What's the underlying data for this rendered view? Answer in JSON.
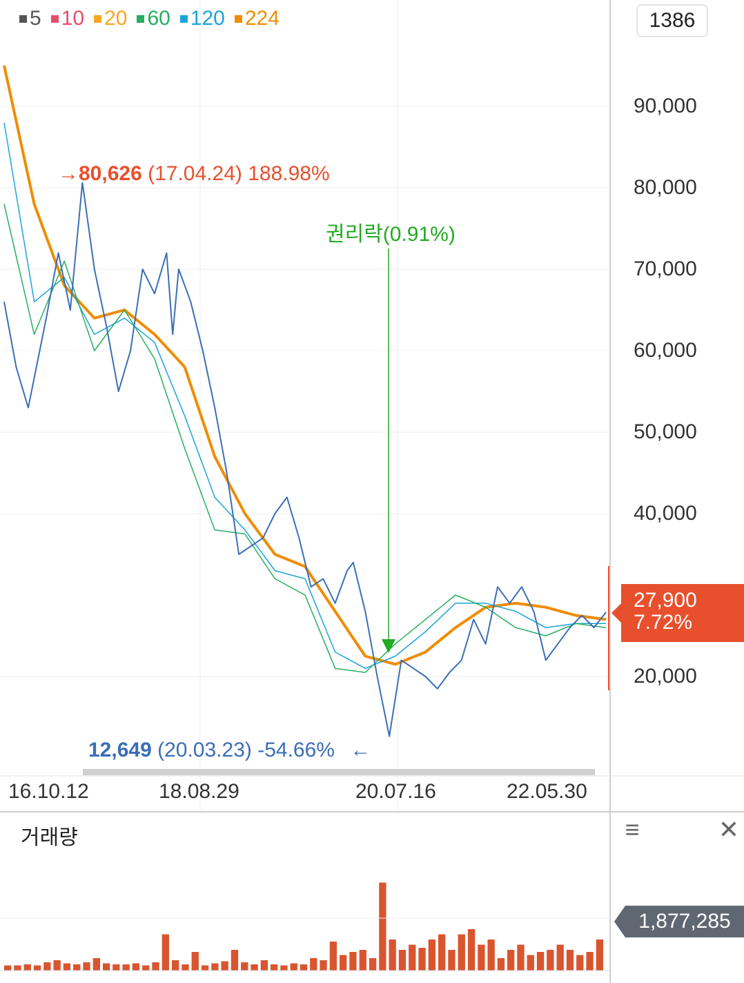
{
  "legend": [
    {
      "label": "5",
      "color": "#555555"
    },
    {
      "label": "10",
      "color": "#e84d6b"
    },
    {
      "label": "20",
      "color": "#f5a623"
    },
    {
      "label": "60",
      "color": "#27ae60"
    },
    {
      "label": "120",
      "color": "#1aa3d9"
    },
    {
      "label": "224",
      "color": "#f08c00"
    }
  ],
  "badge": "1386",
  "current_price": {
    "price": "27,900",
    "change": "7.72%",
    "color": "#e8502d"
  },
  "annotations": {
    "high": {
      "arrow": "→",
      "value": "80,626",
      "date": "(17.04.24)",
      "pct": "188.98%"
    },
    "low": {
      "value": "12,649",
      "date": "(20.03.23)",
      "pct": "-54.66%",
      "arrow": "←"
    },
    "rights": {
      "text": "권리락(0.91%)"
    }
  },
  "volume": {
    "title": "거래량",
    "last": "1,877,285",
    "menu_icon": "hamburger-icon",
    "close_icon": "close-icon"
  },
  "chart_data": {
    "type": "line",
    "price": {
      "ylim": [
        10000,
        100000
      ],
      "yticks": [
        "90,000",
        "80,000",
        "70,000",
        "60,000",
        "50,000",
        "40,000",
        "20,000"
      ],
      "ytick_values": [
        90000,
        80000,
        70000,
        60000,
        50000,
        40000,
        20000
      ],
      "xticks": [
        "16.10.12",
        "18.08.29",
        "20.07.16",
        "22.05.30"
      ],
      "series": [
        {
          "name": "price",
          "color": "#3a6eb5",
          "x": [
            0,
            0.02,
            0.04,
            0.07,
            0.09,
            0.11,
            0.13,
            0.15,
            0.17,
            0.19,
            0.21,
            0.23,
            0.25,
            0.27,
            0.28,
            0.29,
            0.31,
            0.33,
            0.35,
            0.37,
            0.39,
            0.41,
            0.43,
            0.45,
            0.47,
            0.49,
            0.51,
            0.53,
            0.55,
            0.57,
            0.58,
            0.6,
            0.62,
            0.64,
            0.66,
            0.68,
            0.7,
            0.72,
            0.74,
            0.76,
            0.78,
            0.8,
            0.82,
            0.84,
            0.86,
            0.88,
            0.9,
            0.92,
            0.94,
            0.96,
            0.98,
            1.0
          ],
          "y": [
            66000,
            58000,
            53000,
            64000,
            72000,
            65000,
            80626,
            70000,
            63000,
            55000,
            60000,
            70000,
            67000,
            72000,
            62000,
            70000,
            66000,
            60000,
            53000,
            45000,
            35000,
            36000,
            37000,
            40000,
            42000,
            37000,
            31000,
            32000,
            29000,
            33000,
            34000,
            28000,
            20000,
            12649,
            22000,
            21000,
            20000,
            18500,
            20500,
            22000,
            27000,
            24000,
            31000,
            29000,
            31000,
            28000,
            22000,
            24000,
            26000,
            27500,
            26000,
            27900
          ]
        },
        {
          "name": "224",
          "color": "#f08c00",
          "x": [
            0,
            0.05,
            0.1,
            0.15,
            0.2,
            0.25,
            0.3,
            0.35,
            0.4,
            0.45,
            0.5,
            0.55,
            0.6,
            0.65,
            0.7,
            0.75,
            0.8,
            0.85,
            0.9,
            0.95,
            1.0
          ],
          "y": [
            95000,
            78000,
            68000,
            64000,
            65000,
            62000,
            58000,
            47000,
            40000,
            35000,
            33500,
            28000,
            22500,
            21500,
            23000,
            26000,
            28500,
            29000,
            28500,
            27500,
            27000
          ]
        },
        {
          "name": "120",
          "color": "#1aa3d9",
          "x": [
            0,
            0.05,
            0.1,
            0.15,
            0.2,
            0.25,
            0.3,
            0.35,
            0.4,
            0.45,
            0.5,
            0.55,
            0.6,
            0.65,
            0.7,
            0.75,
            0.8,
            0.85,
            0.9,
            0.95,
            1.0
          ],
          "y": [
            88000,
            66000,
            69000,
            62000,
            64000,
            61000,
            52000,
            42000,
            38000,
            33000,
            32000,
            23000,
            21000,
            22500,
            25500,
            29000,
            29000,
            28000,
            26000,
            26500,
            26500
          ]
        },
        {
          "name": "60",
          "color": "#27ae60",
          "x": [
            0,
            0.05,
            0.1,
            0.15,
            0.2,
            0.25,
            0.3,
            0.35,
            0.4,
            0.45,
            0.5,
            0.55,
            0.6,
            0.65,
            0.7,
            0.75,
            0.8,
            0.85,
            0.9,
            0.95,
            1.0
          ],
          "y": [
            78000,
            62000,
            71000,
            60000,
            65000,
            59000,
            48000,
            38000,
            37500,
            32000,
            30000,
            21000,
            20500,
            24000,
            27000,
            30000,
            28500,
            26000,
            25000,
            26500,
            26000
          ]
        }
      ]
    },
    "volume": {
      "series": [
        {
          "name": "volume",
          "color": "#d9552f",
          "values": [
            0.05,
            0.05,
            0.06,
            0.05,
            0.08,
            0.1,
            0.07,
            0.06,
            0.08,
            0.12,
            0.07,
            0.06,
            0.06,
            0.07,
            0.05,
            0.08,
            0.35,
            0.1,
            0.06,
            0.18,
            0.05,
            0.07,
            0.09,
            0.2,
            0.08,
            0.06,
            0.1,
            0.06,
            0.05,
            0.07,
            0.06,
            0.12,
            0.1,
            0.28,
            0.15,
            0.18,
            0.2,
            0.12,
            0.85,
            0.3,
            0.2,
            0.25,
            0.22,
            0.3,
            0.35,
            0.2,
            0.35,
            0.4,
            0.25,
            0.3,
            0.12,
            0.2,
            0.25,
            0.15,
            0.18,
            0.2,
            0.25,
            0.2,
            0.15,
            0.18,
            0.3
          ]
        }
      ]
    }
  }
}
